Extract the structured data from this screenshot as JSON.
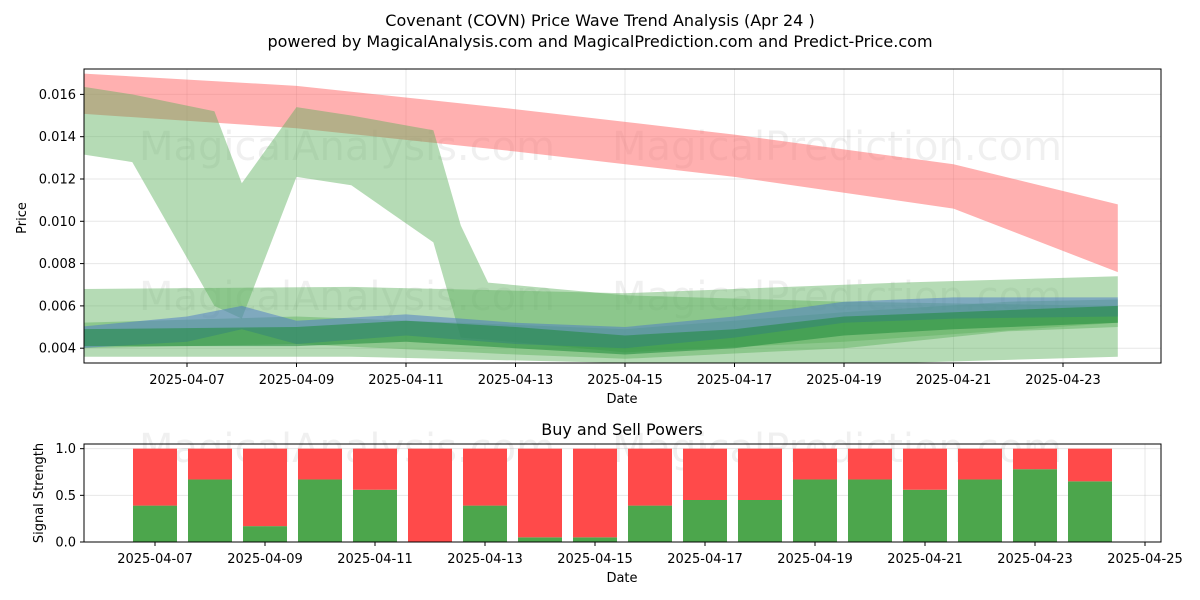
{
  "title": "Covenant (COVN) Price Wave Trend Analysis (Apr 24 )",
  "subtitle": "powered by MagicalAnalysis.com and MagicalPrediction.com and Predict-Price.com",
  "watermarks": [
    "MagicalAnalysis.com",
    "MagicalPrediction.com"
  ],
  "colors": {
    "red_band": "#ff7070",
    "green_band": "#5aaf5a",
    "blue_band": "#4a78c8",
    "buy": "#4ca64c",
    "sell": "#ff4a4a"
  },
  "chart_data": [
    {
      "type": "area",
      "title": "",
      "xlabel": "Date",
      "ylabel": "Price",
      "ylim": [
        0.0033,
        0.0172
      ],
      "x_ticks": [
        "2025-04-07",
        "2025-04-09",
        "2025-04-11",
        "2025-04-13",
        "2025-04-15",
        "2025-04-17",
        "2025-04-19",
        "2025-04-21",
        "2025-04-23"
      ],
      "y_ticks": [
        "0.004",
        "0.006",
        "0.008",
        "0.010",
        "0.012",
        "0.014",
        "0.016"
      ],
      "grid": true,
      "series": [
        {
          "color": "red",
          "x": [
            "2025-04-05",
            "2025-04-09",
            "2025-04-13",
            "2025-04-17",
            "2025-04-21",
            "2025-04-24"
          ],
          "upper": [
            0.017,
            0.0164,
            0.0153,
            0.0141,
            0.0127,
            0.0108
          ],
          "lower": [
            0.0151,
            0.0144,
            0.0133,
            0.0121,
            0.0106,
            0.0076
          ]
        },
        {
          "color": "green",
          "x": [
            "2025-04-05",
            "2025-04-06",
            "2025-04-07.5",
            "2025-04-08",
            "2025-04-09",
            "2025-04-10",
            "2025-04-11.5",
            "2025-04-12",
            "2025-04-12.5",
            "2025-04-15",
            "2025-04-19",
            "2025-04-24"
          ],
          "upper": [
            0.0164,
            0.016,
            0.0152,
            0.0118,
            0.0154,
            0.015,
            0.0143,
            0.0098,
            0.0071,
            0.0065,
            0.0062,
            0.006
          ],
          "lower": [
            0.0132,
            0.0128,
            0.006,
            0.0054,
            0.0121,
            0.0117,
            0.009,
            0.0045,
            0.0044,
            0.0038,
            0.0043,
            0.0052
          ]
        },
        {
          "color": "green",
          "x": [
            "2025-04-05",
            "2025-04-10",
            "2025-04-15",
            "2025-04-20",
            "2025-04-24"
          ],
          "upper": [
            0.0068,
            0.0069,
            0.0066,
            0.0071,
            0.0074
          ],
          "lower": [
            0.0036,
            0.0036,
            0.0033,
            0.0033,
            0.0036
          ]
        },
        {
          "color": "green",
          "x": [
            "2025-04-05",
            "2025-04-09",
            "2025-04-13",
            "2025-04-15",
            "2025-04-19",
            "2025-04-22",
            "2025-04-24"
          ],
          "upper": [
            0.0052,
            0.0055,
            0.0051,
            0.0049,
            0.0057,
            0.0062,
            0.0063
          ],
          "lower": [
            0.004,
            0.0042,
            0.0037,
            0.0035,
            0.004,
            0.0048,
            0.005
          ]
        },
        {
          "color": "blue",
          "x": [
            "2025-04-05",
            "2025-04-07",
            "2025-04-08",
            "2025-04-09",
            "2025-04-11",
            "2025-04-13",
            "2025-04-15",
            "2025-04-17",
            "2025-04-19",
            "2025-04-21",
            "2025-04-24"
          ],
          "upper": [
            0.005,
            0.0055,
            0.006,
            0.0053,
            0.0056,
            0.0052,
            0.005,
            0.0055,
            0.0062,
            0.0064,
            0.0064
          ],
          "lower": [
            0.004,
            0.0043,
            0.0049,
            0.0042,
            0.0046,
            0.0042,
            0.004,
            0.0045,
            0.0052,
            0.0054,
            0.0055
          ]
        },
        {
          "color": "darkgreen",
          "x": [
            "2025-04-05",
            "2025-04-09",
            "2025-04-11",
            "2025-04-13",
            "2025-04-15",
            "2025-04-17",
            "2025-04-19",
            "2025-04-21",
            "2025-04-24"
          ],
          "upper": [
            0.0049,
            0.005,
            0.0053,
            0.005,
            0.0046,
            0.0049,
            0.0055,
            0.0057,
            0.006
          ],
          "lower": [
            0.0041,
            0.0041,
            0.0043,
            0.004,
            0.0037,
            0.004,
            0.0046,
            0.0049,
            0.0052
          ]
        }
      ]
    },
    {
      "type": "bar",
      "title": "Buy and Sell Powers",
      "xlabel": "Date",
      "ylabel": "Signal Strength",
      "ylim": [
        0,
        1.05
      ],
      "x_ticks": [
        "2025-04-07",
        "2025-04-09",
        "2025-04-11",
        "2025-04-13",
        "2025-04-15",
        "2025-04-17",
        "2025-04-19",
        "2025-04-21",
        "2025-04-23",
        "2025-04-25"
      ],
      "y_ticks": [
        "0.0",
        "0.5",
        "1.0"
      ],
      "categories": [
        "2025-04-07",
        "2025-04-08",
        "2025-04-09",
        "2025-04-10",
        "2025-04-11",
        "2025-04-12",
        "2025-04-13",
        "2025-04-14",
        "2025-04-15",
        "2025-04-16",
        "2025-04-17",
        "2025-04-18",
        "2025-04-19",
        "2025-04-20",
        "2025-04-21",
        "2025-04-22",
        "2025-04-23",
        "2025-04-24"
      ],
      "series": [
        {
          "values": [
            0.39,
            0.67,
            0.17,
            0.67,
            0.56,
            0.0,
            0.39,
            0.05,
            0.05,
            0.39,
            0.45,
            0.45,
            0.67,
            0.67,
            0.56,
            0.67,
            0.78,
            0.65
          ]
        },
        {
          "values": [
            0.61,
            0.33,
            0.83,
            0.33,
            0.44,
            1.0,
            0.61,
            0.95,
            0.95,
            0.61,
            0.55,
            0.55,
            0.33,
            0.33,
            0.44,
            0.33,
            0.22,
            0.35
          ]
        }
      ],
      "grid": true
    }
  ]
}
